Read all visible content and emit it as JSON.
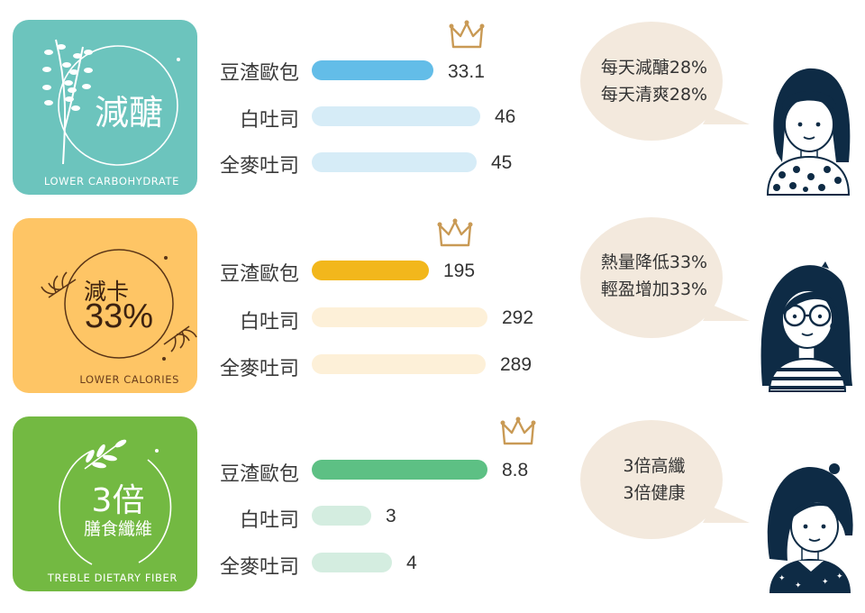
{
  "chart_data": [
    {
      "type": "bar",
      "title": "減醣",
      "categories": [
        "豆渣歐包",
        "白吐司",
        "全麥吐司"
      ],
      "values": [
        33.1,
        46,
        45
      ],
      "value_labels": [
        "33.1",
        "46",
        "45"
      ],
      "colors": [
        "#63bde8",
        "#d6ecf7",
        "#d6ecf7"
      ],
      "badge": {
        "title": "減醣",
        "caption": "LOWER  CARBOHYDRATE",
        "color": "#6cc4bd"
      },
      "bubble": {
        "line1": "每天減醣28%",
        "line2": "每天清爽28%"
      }
    },
    {
      "type": "bar",
      "title": "減卡",
      "categories": [
        "豆渣歐包",
        "白吐司",
        "全麥吐司"
      ],
      "values": [
        195,
        292,
        289
      ],
      "value_labels": [
        "195",
        "292",
        "289"
      ],
      "colors": [
        "#f2b71c",
        "#fdf0d8",
        "#fdf0d8"
      ],
      "badge": {
        "title": "減卡",
        "big": "33%",
        "caption": "LOWER CALORIES",
        "color": "#fec565"
      },
      "bubble": {
        "line1": "熱量降低33%",
        "line2": "輕盈增加33%"
      }
    },
    {
      "type": "bar",
      "title": "3倍",
      "categories": [
        "豆渣歐包",
        "白吐司",
        "全麥吐司"
      ],
      "values": [
        8.8,
        3,
        4
      ],
      "value_labels": [
        "8.8",
        "3",
        "4"
      ],
      "colors": [
        "#5dc084",
        "#d4ede0",
        "#d4ede0"
      ],
      "badge": {
        "title": "3倍",
        "subtitle": "膳食纖維",
        "caption": "TREBLE DIETARY FIBER",
        "color": "#73b942"
      },
      "bubble": {
        "line1": "3倍高纖",
        "line2": "3倍健康"
      }
    }
  ],
  "icons": [
    "branch-icon",
    "laurel-icon",
    "crown-icon",
    "speech-bubble-icon",
    "person-avatar-icon"
  ],
  "colors": {
    "bubble": "#f3e9dd",
    "hair": "#0e2b45",
    "crown": "#c99a55"
  }
}
